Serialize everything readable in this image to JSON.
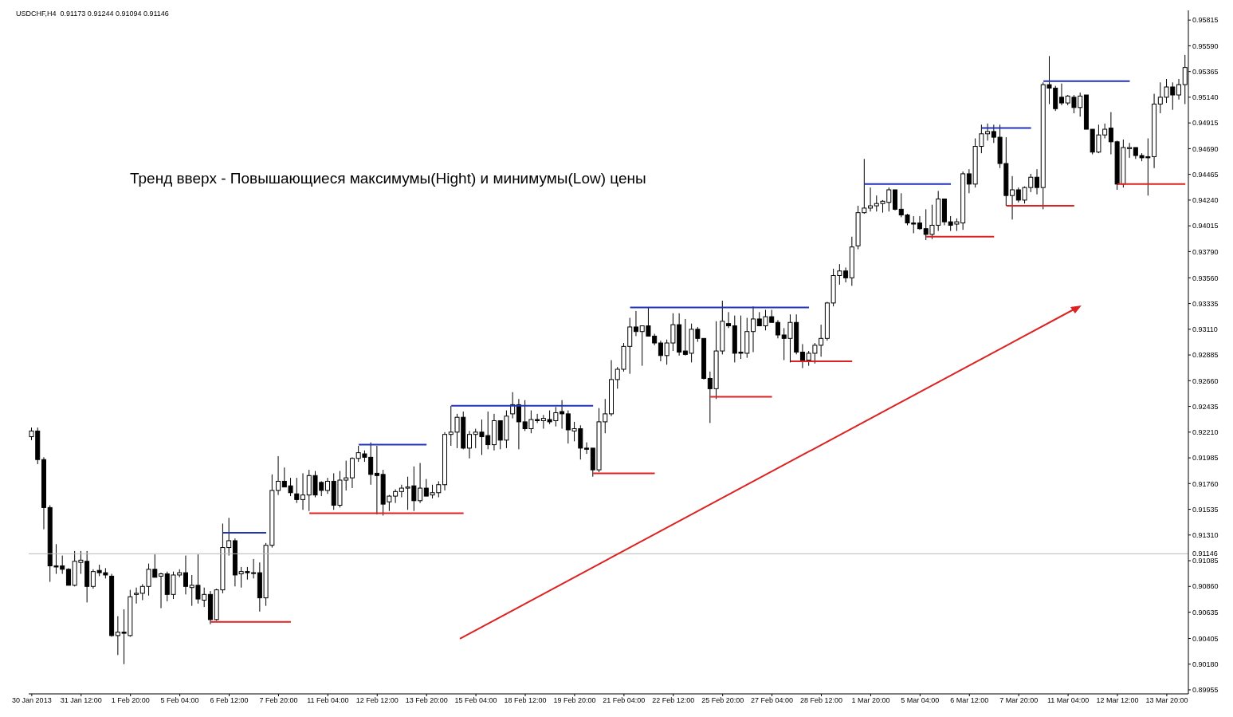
{
  "chart_data": {
    "type": "candlestick",
    "title": "USDCHF,H4  0.91173 0.91244 0.91094 0.91146",
    "annotations": [
      "Тренд вверх - Повышающиеся максимумы(Hight) и минимумы(Low) цены"
    ],
    "categories": [
      "30 Jan 2013",
      null,
      null,
      null,
      null,
      null,
      null,
      null,
      "31 Jan 12:00",
      null,
      null,
      null,
      null,
      null,
      null,
      null,
      "1 Feb 20:00",
      null,
      null,
      null,
      null,
      null,
      null,
      null,
      "5 Feb 04:00",
      null,
      null,
      null,
      null,
      null,
      null,
      null,
      "6 Feb 12:00",
      null,
      null,
      null,
      null,
      null,
      null,
      null,
      "7 Feb 20:00",
      null,
      null,
      null,
      null,
      null,
      null,
      null,
      "11 Feb 04:00",
      null,
      null,
      null,
      null,
      null,
      null,
      null,
      "12 Feb 12:00",
      null,
      null,
      null,
      null,
      null,
      null,
      null,
      "13 Feb 20:00",
      null,
      null,
      null,
      null,
      null,
      null,
      null,
      "15 Feb 04:00",
      null,
      null,
      null,
      null,
      null,
      null,
      null,
      "18 Feb 12:00",
      null,
      null,
      null,
      null,
      null,
      null,
      null,
      "19 Feb 20:00",
      null,
      null,
      null,
      null,
      null,
      null,
      null,
      "21 Feb 04:00",
      null,
      null,
      null,
      null,
      null,
      null,
      null,
      "22 Feb 12:00",
      null,
      null,
      null,
      null,
      null,
      null,
      null,
      "25 Feb 20:00",
      null,
      null,
      null,
      null,
      null,
      null,
      null,
      "27 Feb 04:00",
      null,
      null,
      null,
      null,
      null,
      null,
      null,
      "28 Feb 12:00",
      null,
      null,
      null,
      null,
      null,
      null,
      null,
      "1 Mar 20:00",
      null,
      null,
      null,
      null,
      null,
      null,
      null,
      "5 Mar 04:00",
      null,
      null,
      null,
      null,
      null,
      null,
      null,
      "6 Mar 12:00",
      null,
      null,
      null,
      null,
      null,
      null,
      null,
      "7 Mar 20:00",
      null,
      null,
      null,
      null,
      null,
      null,
      null,
      "11 Mar 04:00",
      null,
      null,
      null,
      null,
      null,
      null,
      null,
      "12 Mar 12:00",
      null,
      null,
      null,
      null,
      null,
      null,
      null,
      "13 Mar 20:00",
      null,
      null,
      null
    ],
    "ohlc": [
      [
        0.9217,
        0.9225,
        0.9214,
        0.9222
      ],
      [
        0.9222,
        0.9225,
        0.9193,
        0.9197
      ],
      [
        0.9197,
        0.9199,
        0.9136,
        0.9155
      ],
      [
        0.9155,
        0.9157,
        0.909,
        0.9104
      ],
      [
        0.9104,
        0.9123,
        0.9097,
        0.9103
      ],
      [
        0.9104,
        0.9113,
        0.9097,
        0.9101
      ],
      [
        0.9101,
        0.9102,
        0.9087,
        0.9087
      ],
      [
        0.9087,
        0.9117,
        0.9086,
        0.9108
      ],
      [
        0.9107,
        0.9117,
        0.9097,
        0.9109
      ],
      [
        0.9108,
        0.9117,
        0.9072,
        0.9086
      ],
      [
        0.9086,
        0.9101,
        0.9084,
        0.9099
      ],
      [
        0.91,
        0.9105,
        0.9095,
        0.9098
      ],
      [
        0.9098,
        0.9102,
        0.9093,
        0.9096
      ],
      [
        0.9095,
        0.9097,
        0.9042,
        0.9043
      ],
      [
        0.9043,
        0.906,
        0.9026,
        0.9046
      ],
      [
        0.9046,
        0.9066,
        0.9018,
        0.9045
      ],
      [
        0.9043,
        0.9083,
        0.9042,
        0.9077
      ],
      [
        0.9079,
        0.9085,
        0.9071,
        0.908
      ],
      [
        0.908,
        0.9088,
        0.9074,
        0.9086
      ],
      [
        0.9086,
        0.9106,
        0.9078,
        0.9101
      ],
      [
        0.9101,
        0.9114,
        0.9094,
        0.9094
      ],
      [
        0.9095,
        0.9098,
        0.9067,
        0.9097
      ],
      [
        0.9097,
        0.9099,
        0.9073,
        0.9079
      ],
      [
        0.9079,
        0.9099,
        0.9075,
        0.9096
      ],
      [
        0.9096,
        0.9101,
        0.9094,
        0.9098
      ],
      [
        0.9098,
        0.9113,
        0.9079,
        0.9086
      ],
      [
        0.9085,
        0.9096,
        0.9069,
        0.9087
      ],
      [
        0.9087,
        0.9114,
        0.9071,
        0.9075
      ],
      [
        0.9074,
        0.9085,
        0.9068,
        0.9079
      ],
      [
        0.9079,
        0.9082,
        0.9053,
        0.9057
      ],
      [
        0.9057,
        0.9084,
        0.9056,
        0.9083
      ],
      [
        0.9083,
        0.9141,
        0.908,
        0.912
      ],
      [
        0.912,
        0.9146,
        0.9113,
        0.9126
      ],
      [
        0.9126,
        0.9128,
        0.9086,
        0.9096
      ],
      [
        0.9097,
        0.9103,
        0.9085,
        0.9099
      ],
      [
        0.9099,
        0.9103,
        0.9092,
        0.9098
      ],
      [
        0.9098,
        0.911,
        0.9093,
        0.9098
      ],
      [
        0.9098,
        0.9107,
        0.9064,
        0.9076
      ],
      [
        0.9076,
        0.9124,
        0.9069,
        0.9122
      ],
      [
        0.9122,
        0.9184,
        0.912,
        0.917
      ],
      [
        0.917,
        0.92,
        0.9166,
        0.9178
      ],
      [
        0.9178,
        0.919,
        0.9173,
        0.9173
      ],
      [
        0.9174,
        0.9181,
        0.9165,
        0.9168
      ],
      [
        0.9167,
        0.9181,
        0.9159,
        0.9162
      ],
      [
        0.9162,
        0.9185,
        0.9153,
        0.9166
      ],
      [
        0.9166,
        0.9188,
        0.9152,
        0.9183
      ],
      [
        0.9183,
        0.9187,
        0.9164,
        0.9166
      ],
      [
        0.9177,
        0.9178,
        0.9165,
        0.917
      ],
      [
        0.917,
        0.9181,
        0.9167,
        0.9178
      ],
      [
        0.9178,
        0.9185,
        0.9153,
        0.9157
      ],
      [
        0.9157,
        0.9187,
        0.9155,
        0.9179
      ],
      [
        0.9179,
        0.9196,
        0.917,
        0.9181
      ],
      [
        0.9181,
        0.9199,
        0.9172,
        0.9198
      ],
      [
        0.9198,
        0.9209,
        0.9195,
        0.9203
      ],
      [
        0.9202,
        0.9205,
        0.9195,
        0.9199
      ],
      [
        0.9199,
        0.9212,
        0.9175,
        0.9184
      ],
      [
        0.9185,
        0.9209,
        0.9149,
        0.9183
      ],
      [
        0.9184,
        0.9188,
        0.9148,
        0.9158
      ],
      [
        0.916,
        0.9166,
        0.9152,
        0.9165
      ],
      [
        0.9165,
        0.9171,
        0.9159,
        0.9169
      ],
      [
        0.9169,
        0.9175,
        0.9164,
        0.9172
      ],
      [
        0.9172,
        0.9182,
        0.9153,
        0.9173
      ],
      [
        0.9174,
        0.9191,
        0.9152,
        0.9161
      ],
      [
        0.9161,
        0.9194,
        0.9159,
        0.9172
      ],
      [
        0.9172,
        0.918,
        0.9165,
        0.9165
      ],
      [
        0.9166,
        0.9175,
        0.9163,
        0.9168
      ],
      [
        0.9168,
        0.9178,
        0.9164,
        0.9175
      ],
      [
        0.9175,
        0.9221,
        0.917,
        0.9219
      ],
      [
        0.9219,
        0.9244,
        0.9209,
        0.9221
      ],
      [
        0.9221,
        0.9237,
        0.9207,
        0.9234
      ],
      [
        0.9234,
        0.9239,
        0.9206,
        0.9207
      ],
      [
        0.9207,
        0.9222,
        0.9198,
        0.9219
      ],
      [
        0.9219,
        0.9224,
        0.9207,
        0.9221
      ],
      [
        0.9221,
        0.9232,
        0.9201,
        0.9217
      ],
      [
        0.9218,
        0.9239,
        0.9206,
        0.921
      ],
      [
        0.921,
        0.9237,
        0.9205,
        0.9231
      ],
      [
        0.9231,
        0.9231,
        0.9206,
        0.9214
      ],
      [
        0.9214,
        0.924,
        0.9207,
        0.9235
      ],
      [
        0.9237,
        0.9256,
        0.9233,
        0.9245
      ],
      [
        0.9245,
        0.925,
        0.9206,
        0.923
      ],
      [
        0.923,
        0.9249,
        0.9222,
        0.9224
      ],
      [
        0.9224,
        0.924,
        0.922,
        0.9232
      ],
      [
        0.9232,
        0.9237,
        0.9229,
        0.9231
      ],
      [
        0.9231,
        0.9236,
        0.9224,
        0.9233
      ],
      [
        0.9232,
        0.924,
        0.9228,
        0.923
      ],
      [
        0.9231,
        0.9243,
        0.9226,
        0.9238
      ],
      [
        0.9239,
        0.9249,
        0.9224,
        0.9237
      ],
      [
        0.9237,
        0.924,
        0.9211,
        0.9223
      ],
      [
        0.9222,
        0.923,
        0.9213,
        0.9224
      ],
      [
        0.9224,
        0.9227,
        0.9197,
        0.9207
      ],
      [
        0.9207,
        0.9212,
        0.9202,
        0.9206
      ],
      [
        0.9207,
        0.9207,
        0.9182,
        0.9188
      ],
      [
        0.9188,
        0.9242,
        0.9186,
        0.923
      ],
      [
        0.923,
        0.925,
        0.922,
        0.9237
      ],
      [
        0.9237,
        0.9284,
        0.9235,
        0.9267
      ],
      [
        0.9267,
        0.9278,
        0.9259,
        0.9276
      ],
      [
        0.9276,
        0.9299,
        0.9274,
        0.9296
      ],
      [
        0.9296,
        0.9321,
        0.9272,
        0.9313
      ],
      [
        0.9313,
        0.9327,
        0.9305,
        0.9309
      ],
      [
        0.9309,
        0.9314,
        0.9279,
        0.9314
      ],
      [
        0.9314,
        0.933,
        0.9305,
        0.9305
      ],
      [
        0.9305,
        0.9307,
        0.9297,
        0.9299
      ],
      [
        0.9299,
        0.9301,
        0.9283,
        0.9288
      ],
      [
        0.9288,
        0.9302,
        0.928,
        0.9299
      ],
      [
        0.9299,
        0.9325,
        0.9292,
        0.9315
      ],
      [
        0.9315,
        0.9325,
        0.9288,
        0.9291
      ],
      [
        0.9292,
        0.932,
        0.9288,
        0.9289
      ],
      [
        0.929,
        0.9316,
        0.9282,
        0.9311
      ],
      [
        0.9311,
        0.9313,
        0.93,
        0.9303
      ],
      [
        0.9303,
        0.9303,
        0.9267,
        0.9268
      ],
      [
        0.9268,
        0.9274,
        0.9229,
        0.9259
      ],
      [
        0.9259,
        0.9318,
        0.925,
        0.9292
      ],
      [
        0.9292,
        0.9336,
        0.9289,
        0.9318
      ],
      [
        0.9316,
        0.9326,
        0.9312,
        0.9314
      ],
      [
        0.9314,
        0.9323,
        0.9282,
        0.929
      ],
      [
        0.9291,
        0.9323,
        0.9285,
        0.929
      ],
      [
        0.929,
        0.9321,
        0.9286,
        0.9309
      ],
      [
        0.9309,
        0.9331,
        0.9291,
        0.932
      ],
      [
        0.932,
        0.9326,
        0.9314,
        0.9314
      ],
      [
        0.9314,
        0.9328,
        0.931,
        0.9322
      ],
      [
        0.9322,
        0.9328,
        0.9317,
        0.9317
      ],
      [
        0.9317,
        0.9319,
        0.9303,
        0.9306
      ],
      [
        0.9306,
        0.9312,
        0.9284,
        0.9303
      ],
      [
        0.9303,
        0.9324,
        0.9282,
        0.9317
      ],
      [
        0.9317,
        0.9324,
        0.9289,
        0.9291
      ],
      [
        0.9291,
        0.9298,
        0.9277,
        0.9284
      ],
      [
        0.9284,
        0.9292,
        0.9279,
        0.929
      ],
      [
        0.929,
        0.9299,
        0.9281,
        0.9297
      ],
      [
        0.9297,
        0.9315,
        0.9287,
        0.9303
      ],
      [
        0.9303,
        0.9335,
        0.9301,
        0.9334
      ],
      [
        0.9334,
        0.9364,
        0.9331,
        0.9358
      ],
      [
        0.9358,
        0.9368,
        0.935,
        0.9362
      ],
      [
        0.9362,
        0.9365,
        0.9352,
        0.9356
      ],
      [
        0.9356,
        0.9392,
        0.9349,
        0.9383
      ],
      [
        0.9384,
        0.9419,
        0.9381,
        0.9413
      ],
      [
        0.9413,
        0.946,
        0.9412,
        0.9417
      ],
      [
        0.9417,
        0.9435,
        0.9414,
        0.9419
      ],
      [
        0.9419,
        0.9428,
        0.9414,
        0.9421
      ],
      [
        0.9421,
        0.9424,
        0.9413,
        0.9423
      ],
      [
        0.9422,
        0.9435,
        0.9414,
        0.9433
      ],
      [
        0.9433,
        0.9433,
        0.9415,
        0.9416
      ],
      [
        0.9416,
        0.943,
        0.9409,
        0.9411
      ],
      [
        0.9411,
        0.9412,
        0.9402,
        0.9404
      ],
      [
        0.9404,
        0.941,
        0.9395,
        0.9403
      ],
      [
        0.9404,
        0.941,
        0.9398,
        0.9399
      ],
      [
        0.9399,
        0.9416,
        0.9389,
        0.9394
      ],
      [
        0.9394,
        0.942,
        0.939,
        0.9402
      ],
      [
        0.9402,
        0.9432,
        0.9397,
        0.9425
      ],
      [
        0.9425,
        0.9425,
        0.9402,
        0.9405
      ],
      [
        0.9405,
        0.941,
        0.9397,
        0.9402
      ],
      [
        0.9403,
        0.9408,
        0.9397,
        0.9405
      ],
      [
        0.9404,
        0.9449,
        0.9398,
        0.9447
      ],
      [
        0.9447,
        0.9451,
        0.943,
        0.9438
      ],
      [
        0.9438,
        0.9478,
        0.9435,
        0.9471
      ],
      [
        0.9471,
        0.949,
        0.9465,
        0.9482
      ],
      [
        0.9482,
        0.9491,
        0.9476,
        0.9484
      ],
      [
        0.9484,
        0.949,
        0.9474,
        0.9479
      ],
      [
        0.9479,
        0.949,
        0.9452,
        0.9456
      ],
      [
        0.9456,
        0.9479,
        0.9419,
        0.9428
      ],
      [
        0.9428,
        0.9445,
        0.9407,
        0.9433
      ],
      [
        0.9433,
        0.9435,
        0.9422,
        0.9424
      ],
      [
        0.9424,
        0.9436,
        0.9421,
        0.9435
      ],
      [
        0.9435,
        0.9447,
        0.9431,
        0.9444
      ],
      [
        0.9444,
        0.9451,
        0.9429,
        0.9435
      ],
      [
        0.9435,
        0.9527,
        0.9416,
        0.9525
      ],
      [
        0.9525,
        0.955,
        0.9508,
        0.9522
      ],
      [
        0.9522,
        0.9524,
        0.9502,
        0.9504
      ],
      [
        0.9514,
        0.9526,
        0.9507,
        0.9509
      ],
      [
        0.9509,
        0.9516,
        0.9507,
        0.9515
      ],
      [
        0.9514,
        0.9516,
        0.95,
        0.9505
      ],
      [
        0.9505,
        0.9518,
        0.9497,
        0.9515
      ],
      [
        0.9516,
        0.9516,
        0.9486,
        0.9486
      ],
      [
        0.9486,
        0.9486,
        0.9464,
        0.9466
      ],
      [
        0.9466,
        0.949,
        0.9465,
        0.9481
      ],
      [
        0.9481,
        0.9491,
        0.9478,
        0.9486
      ],
      [
        0.9487,
        0.9501,
        0.9464,
        0.9475
      ],
      [
        0.9475,
        0.9476,
        0.9433,
        0.9438
      ],
      [
        0.9438,
        0.9477,
        0.9435,
        0.947
      ],
      [
        0.9469,
        0.9474,
        0.9461,
        0.947
      ],
      [
        0.947,
        0.947,
        0.946,
        0.9463
      ],
      [
        0.9463,
        0.9465,
        0.9458,
        0.9461
      ],
      [
        0.9462,
        0.9478,
        0.9428,
        0.9461
      ],
      [
        0.9462,
        0.9517,
        0.9452,
        0.9508
      ],
      [
        0.9508,
        0.9527,
        0.95,
        0.9514
      ],
      [
        0.9514,
        0.953,
        0.9509,
        0.9523
      ],
      [
        0.9523,
        0.9527,
        0.9503,
        0.9516
      ],
      [
        0.9516,
        0.953,
        0.9512,
        0.9525
      ],
      [
        0.9525,
        0.9551,
        0.9508,
        0.954
      ]
    ],
    "series": [
      {
        "type": "line",
        "color": "#2233bb",
        "values": [
          null,
          null,
          null,
          null,
          null,
          null,
          null,
          null,
          null,
          null,
          null,
          null,
          null,
          null,
          null,
          null,
          null,
          null,
          null,
          null,
          null,
          null,
          null,
          null,
          null,
          null,
          null,
          null,
          null,
          null,
          null,
          0.9133,
          0.9133,
          0.9133,
          0.9133,
          0.9133,
          0.9133,
          0.9133,
          0.9133,
          null,
          null,
          null,
          null,
          null,
          null,
          null,
          null,
          null,
          null,
          null,
          null,
          null,
          null,
          0.921,
          0.921,
          0.921,
          0.921,
          0.921,
          0.921,
          0.921,
          0.921,
          0.921,
          0.921,
          0.921,
          0.921,
          null,
          null,
          null,
          0.9244,
          0.9244,
          0.9244,
          0.9244,
          0.9244,
          0.9244,
          0.9244,
          0.9244,
          0.9244,
          0.9244,
          0.9244,
          0.9244,
          0.9244,
          0.9244,
          0.9244,
          0.9244,
          0.9244,
          0.9244,
          0.9244,
          0.9244,
          0.9244,
          0.9244,
          0.9244,
          0.9244,
          null,
          null,
          null,
          null,
          null,
          0.933,
          0.933,
          0.933,
          0.933,
          0.933,
          0.933,
          0.933,
          0.933,
          0.933,
          0.933,
          0.933,
          0.933,
          0.933,
          0.933,
          0.933,
          0.933,
          0.933,
          0.933,
          0.933,
          0.933,
          0.933,
          0.933,
          0.933,
          0.933,
          0.933,
          0.933,
          0.933,
          0.933,
          0.933,
          0.933,
          null,
          null,
          null,
          null,
          null,
          null,
          null,
          null,
          0.9438,
          0.9438,
          0.9438,
          0.9438,
          0.9438,
          0.9438,
          0.9438,
          0.9438,
          0.9438,
          0.9438,
          0.9438,
          0.9438,
          0.9438,
          0.9438,
          0.9438,
          null,
          null,
          null,
          null,
          0.9487,
          0.9487,
          0.9487,
          0.9487,
          0.9487,
          0.9487,
          0.9487,
          0.9487,
          0.9487,
          null,
          0.9528,
          0.9528,
          0.9528,
          0.9528,
          0.9528,
          0.9528,
          0.9528,
          0.9528,
          0.9528,
          0.9528,
          0.9528,
          0.9528,
          0.9528,
          0.9528,
          0.9528,
          null,
          null,
          null,
          null,
          null,
          null,
          null,
          null,
          null
        ]
      },
      {
        "type": "line",
        "color": "#dd2222",
        "values": [
          null,
          null,
          null,
          null,
          null,
          null,
          null,
          null,
          null,
          null,
          null,
          null,
          null,
          null,
          null,
          null,
          null,
          null,
          null,
          null,
          null,
          null,
          null,
          null,
          null,
          null,
          null,
          null,
          null,
          0.9055,
          0.9055,
          0.9055,
          0.9055,
          0.9055,
          0.9055,
          0.9055,
          0.9055,
          0.9055,
          0.9055,
          0.9055,
          0.9055,
          0.9055,
          0.9055,
          null,
          null,
          0.915,
          0.915,
          0.915,
          0.915,
          0.915,
          0.915,
          0.915,
          0.915,
          0.915,
          0.915,
          0.915,
          0.915,
          0.915,
          0.915,
          0.915,
          0.915,
          0.915,
          0.915,
          0.915,
          0.915,
          0.915,
          0.915,
          0.915,
          0.915,
          0.915,
          0.915,
          null,
          null,
          null,
          null,
          null,
          null,
          null,
          null,
          null,
          null,
          null,
          null,
          null,
          null,
          null,
          null,
          null,
          null,
          null,
          null,
          0.9185,
          0.9185,
          0.9185,
          0.9185,
          0.9185,
          0.9185,
          0.9185,
          0.9185,
          0.9185,
          0.9185,
          0.9185,
          null,
          null,
          null,
          null,
          null,
          null,
          null,
          null,
          0.9252,
          0.9252,
          0.9252,
          0.9252,
          0.9252,
          0.9252,
          0.9252,
          0.9252,
          0.9252,
          0.9252,
          0.9252,
          null,
          null,
          0.9283,
          0.9283,
          0.9283,
          0.9283,
          0.9283,
          0.9283,
          0.9283,
          0.9283,
          0.9283,
          0.9283,
          0.9283,
          null,
          null,
          null,
          null,
          null,
          null,
          null,
          null,
          null,
          null,
          null,
          0.9392,
          0.9392,
          0.9392,
          0.9392,
          0.9392,
          0.9392,
          0.9392,
          0.9392,
          0.9392,
          0.9392,
          0.9392,
          0.9392,
          null,
          0.9419,
          0.9419,
          0.9419,
          0.9419,
          0.9419,
          0.9419,
          0.9419,
          0.9419,
          0.9419,
          0.9419,
          0.9419,
          0.9419,
          null,
          null,
          null,
          null,
          null,
          null,
          0.9438,
          0.9438,
          0.9438,
          0.9438,
          0.9438,
          0.9438,
          0.9438,
          0.9438,
          0.9438,
          0.9438,
          0.9438,
          0.9438
        ]
      }
    ],
    "ylim": [
      0.8992,
      0.959
    ],
    "yticks": [
      0.89955,
      {
        "value": 0.9018,
        "label": "0.90180"
      },
      0.90405,
      0.90635,
      {
        "value": 0.9086,
        "label": "0.90860"
      },
      0.91085,
      {
        "value": 0.9131,
        "label": "0.91310"
      },
      0.91535,
      {
        "value": 0.9176,
        "label": "0.91760"
      },
      0.91985,
      {
        "value": 0.9221,
        "label": "0.92210"
      },
      0.92435,
      {
        "value": 0.9266,
        "label": "0.92660"
      },
      0.92885,
      {
        "value": 0.9311,
        "label": "0.93110"
      },
      0.93335,
      {
        "value": 0.9356,
        "label": "0.93560"
      },
      {
        "value": 0.9379,
        "label": "0.93790"
      },
      0.94015,
      {
        "value": 0.9424,
        "label": "0.94240"
      },
      0.94465,
      {
        "value": 0.9469,
        "label": "0.94690"
      },
      0.94915,
      {
        "value": 0.9514,
        "label": "0.95140"
      },
      0.95365,
      {
        "value": 0.9559,
        "label": "0.95590"
      },
      0.95815
    ],
    "ref_lines": [
      {
        "axis": "y",
        "value": 0.91146,
        "label": "0.91146",
        "color": "#b8b8b8"
      }
    ]
  }
}
